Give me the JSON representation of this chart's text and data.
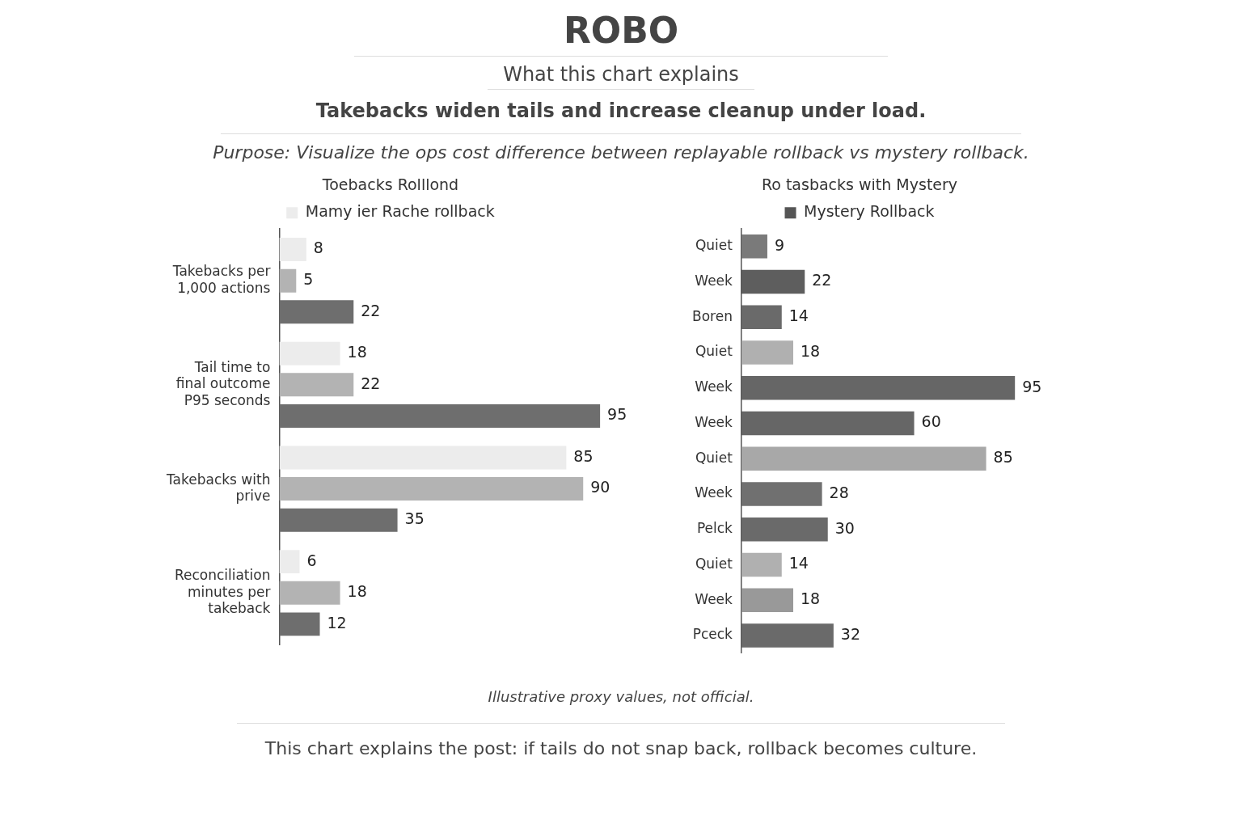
{
  "chart_data": [
    {
      "type": "bar",
      "orientation": "horizontal",
      "title": "ROBO",
      "subtitle": "What this chart explains",
      "annotations": [
        "Takebacks widen tails and increase cleanup under load.",
        "Purpose: Visualize the ops cost difference between replayable rollback vs mystery rollback.",
        "Illustrative proxy values, not official.",
        "This chart explains the post: if tails do not snap back, rollback becomes culture."
      ],
      "legend_title": "Toebacks Rolllond",
      "legend": "top",
      "categories": [
        "Takebacks per 1,000 actions",
        "Tail time to final outcome P95 seconds",
        "Takebacks with prive",
        "Reconciliation minutes per takeback"
      ],
      "series": [
        {
          "name": "Mamy ier Rache rollback",
          "color": "#ececec",
          "values": [
            8,
            18,
            85,
            6
          ]
        },
        {
          "color": "#b3b3b3",
          "values": [
            5,
            22,
            90,
            18
          ]
        },
        {
          "color": "#6e6e6e",
          "values": [
            22,
            95,
            35,
            12
          ]
        }
      ],
      "tick_labels": "y",
      "data_labels": true,
      "grid": false
    },
    {
      "type": "bar",
      "orientation": "horizontal",
      "legend_title": "Ro tasbacks with Mystery",
      "legend": "top",
      "categories": [
        "Quiet",
        "Week",
        "Boren",
        "Quiet",
        "Week",
        "Week",
        "Quiet",
        "Week",
        "Pelck",
        "Quiet",
        "Week",
        "Pceck"
      ],
      "series": [
        {
          "name": "Mystery Rollback",
          "color": "#555555",
          "colors": [
            "#7a7a7a",
            "#5e5e5e",
            "#6a6a6a",
            "#b0b0b0",
            "#666666",
            "#666666",
            "#a8a8a8",
            "#707070",
            "#6a6a6a",
            "#b0b0b0",
            "#999999",
            "#6a6a6a"
          ],
          "values": [
            9,
            22,
            14,
            18,
            95,
            60,
            85,
            28,
            30,
            14,
            18,
            32
          ]
        }
      ],
      "tick_labels": "y",
      "data_labels": true,
      "grid": false
    }
  ]
}
